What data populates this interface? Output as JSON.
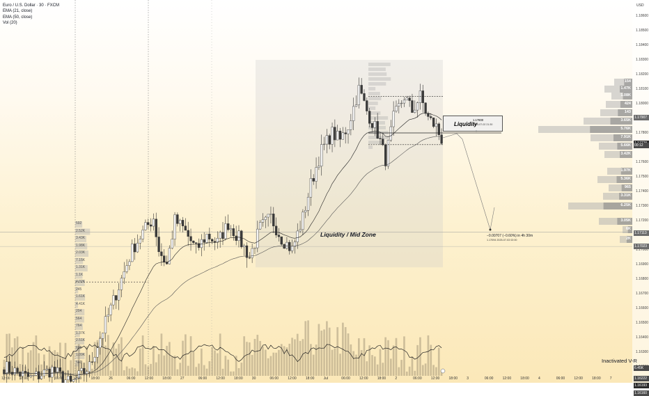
{
  "legend": {
    "title": "Euro / U.S. Dollar · 30 · FXCM",
    "ind1": "EMA (21, close)",
    "ind2": "EMA (50, close)",
    "ind3": "Vol (20)"
  },
  "annotations": {
    "mid_zone": "Liquidity / Mid Zone",
    "liquidity": "Liquidity",
    "liq_price": "1.17800",
    "liq_date": "2025-07-02  21:30",
    "measure": "−0.00707 (−0.60%) in 4h 30m",
    "measure_detail": "1.17094    2025-07-03  02:00",
    "inactivated": "Inactivated  V-R",
    "currency": "USD"
  },
  "colors": {
    "up": "#f5f5f5",
    "down": "#3a3a3a",
    "wick": "#333333",
    "badge_dark": "#4a4a4a",
    "badge_mid": "#6b6b6b",
    "badge_light": "#9a9a9a"
  },
  "badges": [
    {
      "label": "1.17907",
      "price": 1.17907,
      "color": "#6b6b6b"
    },
    {
      "label": "1.17728",
      "price": 1.17728,
      "color": "#2b2b2b"
    },
    {
      "label": "00:12",
      "price": 1.17715,
      "color": "#4a4a4a"
    },
    {
      "label": "1.17113",
      "price": 1.17113,
      "color": "#6b6b6b"
    },
    {
      "label": "1.17023",
      "price": 1.17023,
      "color": "#6b6b6b"
    },
    {
      "label": "6.45K",
      "price": 1.1619,
      "color": "#4a4a4a"
    },
    {
      "label": "1.16222",
      "price": 1.1612,
      "color": "#4a4a4a"
    },
    {
      "label": "1.16193",
      "price": 1.1607,
      "color": "#2b2b2b"
    },
    {
      "label": "1.16160",
      "price": 1.1602,
      "color": "#4a4a4a"
    }
  ],
  "profile_labels_right": [
    "154",
    "1.47K",
    "1.08K",
    "424",
    "143",
    "3.65K",
    "5.76K",
    "7.91K",
    "5.66K",
    "3.42K",
    "1.97K",
    "5.36K",
    "965",
    "3.31K",
    "6.25K",
    "3.05K",
    "6K",
    "2K"
  ],
  "profile_labels_left": [
    "592",
    "2.52K",
    "3.43K",
    "1.98K",
    "2.03K",
    "7.15K",
    "1.31K",
    "1.1K",
    "4.02K",
    "245",
    "1.61K",
    "4.41K",
    "204",
    "564",
    "764",
    "1.37K",
    "2.51K",
    "608",
    "1.09K",
    "560"
  ],
  "chart_data": {
    "type": "candlestick",
    "ylim": [
      1.1609,
      1.1871
    ],
    "y_ticks": [
      1.161,
      1.162,
      1.163,
      1.164,
      1.165,
      1.166,
      1.167,
      1.168,
      1.169,
      1.17,
      1.171,
      1.172,
      1.173,
      1.174,
      1.175,
      1.176,
      1.177,
      1.178,
      1.179,
      1.18,
      1.181,
      1.182,
      1.183,
      1.184,
      1.185,
      1.186
    ],
    "x_ticks": [
      "12:00",
      "18:00",
      "25",
      "06:00",
      "12:00",
      "18:00",
      "26",
      "06:00",
      "12:00",
      "18:00",
      "27",
      "06:00",
      "12:00",
      "18:00",
      "30",
      "06:00",
      "12:00",
      "18:00",
      "Jul",
      "06:00",
      "12:00",
      "18:00",
      "2",
      "06:00",
      "12:00",
      "18:00",
      "3",
      "06:00",
      "12:00",
      "18:00",
      "4",
      "06:00",
      "12:00",
      "18:00",
      "7"
    ],
    "key_levels": {
      "liquidity_top": 1.1805,
      "liquidity_mid": 1.178,
      "liquidity_bottom": 1.1772,
      "mid_zone_top": 1.183,
      "mid_zone_bottom": 1.1688,
      "profile_level": 1.1712,
      "target": 1.17094,
      "left_level": 1.1678
    },
    "anchors": [
      [
        0,
        1.162
      ],
      [
        10,
        1.1612
      ],
      [
        18,
        1.1618
      ],
      [
        25,
        1.1608
      ],
      [
        32,
        1.162
      ],
      [
        38,
        1.165
      ],
      [
        44,
        1.168
      ],
      [
        48,
        1.17
      ],
      [
        52,
        1.1712
      ],
      [
        56,
        1.1722
      ],
      [
        58,
        1.17
      ],
      [
        61,
        1.169
      ],
      [
        64,
        1.172
      ],
      [
        67,
        1.1715
      ],
      [
        72,
        1.17
      ],
      [
        76,
        1.171
      ],
      [
        80,
        1.1705
      ],
      [
        84,
        1.1718
      ],
      [
        88,
        1.1708
      ],
      [
        92,
        1.1695
      ],
      [
        96,
        1.1715
      ],
      [
        100,
        1.1722
      ],
      [
        104,
        1.1708
      ],
      [
        108,
        1.17
      ],
      [
        112,
        1.1722
      ],
      [
        115,
        1.1745
      ],
      [
        119,
        1.1768
      ],
      [
        123,
        1.178
      ],
      [
        126,
        1.1775
      ],
      [
        129,
        1.1785
      ],
      [
        133,
        1.181
      ],
      [
        136,
        1.1795
      ],
      [
        140,
        1.178
      ],
      [
        143,
        1.1762
      ],
      [
        146,
        1.179
      ],
      [
        150,
        1.1805
      ],
      [
        153,
        1.1795
      ],
      [
        156,
        1.1805
      ],
      [
        159,
        1.179
      ],
      [
        162,
        1.1784
      ],
      [
        164,
        1.1775
      ]
    ],
    "count": 165
  }
}
